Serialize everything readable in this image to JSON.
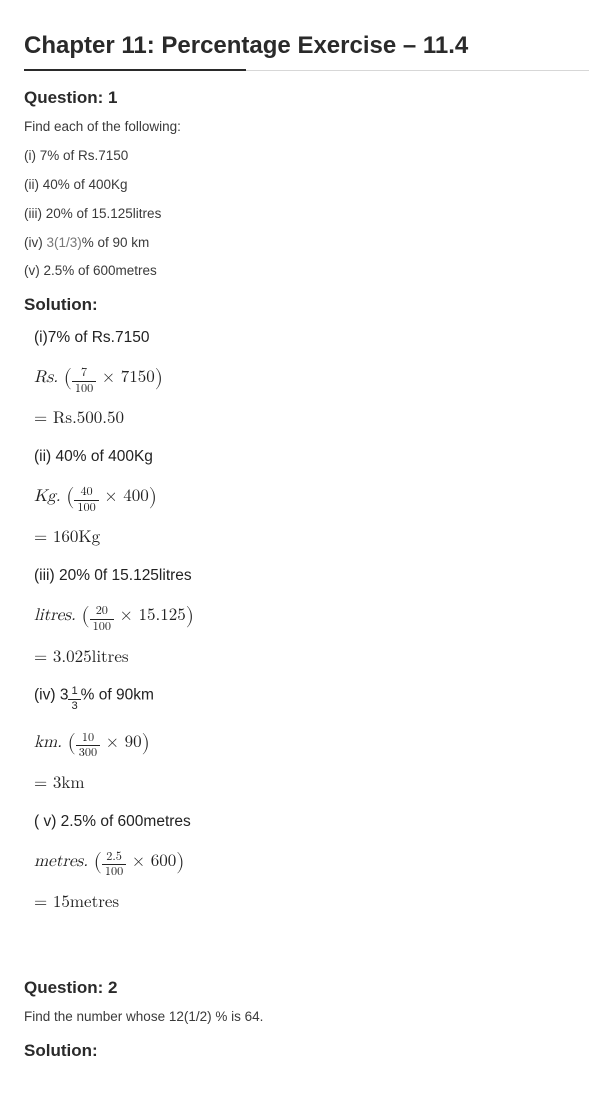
{
  "chapter": {
    "title": "Chapter 11: Percentage Exercise – 11.4"
  },
  "q1": {
    "heading": "Question: 1",
    "prompt": "Find each of the following:",
    "items": {
      "i": "(i) 7% of Rs.7150",
      "ii": "(ii) 40% of 400Kg",
      "iii": "(iii) 20% of 15.125litres",
      "iv_pre": "(iv) ",
      "iv_mid": "3(1/3)",
      "iv_post": "% of 90 km",
      "v": "(v) 2.5% of 600metres"
    },
    "solution_heading": "Solution:",
    "sol": {
      "i_label": "(i)7% of Rs.7150",
      "i_expr_prefix": "Rs. ",
      "i_num": "7",
      "i_den": "100",
      "i_times": " × 7150",
      "i_result": "= Rs.500.50",
      "ii_label": "(ii) 40% of 400Kg",
      "ii_expr_prefix": "Kg. ",
      "ii_num": "40",
      "ii_den": "100",
      "ii_times": " × 400",
      "ii_result": "= 160Kg",
      "iii_label": "(iii) 20% 0f 15.125litres",
      "iii_expr_prefix": "litres. ",
      "iii_num": "20",
      "iii_den": "100",
      "iii_times": " × 15.125",
      "iii_result": "= 3.025litres",
      "iv_label_pre": "(iv) 3",
      "iv_label_num": "1",
      "iv_label_den": "3",
      "iv_label_post": "%  of 90km",
      "iv_expr_prefix": "km. ",
      "iv_num": "10",
      "iv_den": "300",
      "iv_times": " × 90",
      "iv_result": "= 3km",
      "v_label": "( v) 2.5% of 600metres",
      "v_expr_prefix": "metres. ",
      "v_num": "2.5",
      "v_den": "100",
      "v_times": " × 600",
      "v_result": "= 15metres"
    }
  },
  "q2": {
    "heading": "Question: 2",
    "prompt": "Find the number whose 12(1/2) % is 64.",
    "solution_heading": "Solution:"
  }
}
